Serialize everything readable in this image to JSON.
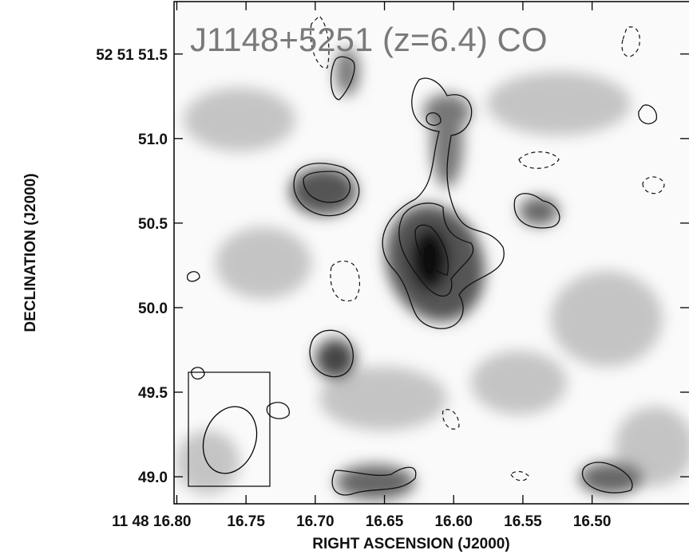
{
  "chart_data": {
    "type": "contour",
    "title": "J1148+5251 (z=6.4) CO",
    "x_label": "RIGHT ASCENSION (J2000)",
    "y_label": "DECLINATION (J2000)",
    "xlim": [
      16.802,
      16.43
    ],
    "ylim": [
      48.84,
      51.81
    ],
    "xticks": [
      {
        "value": 16.8,
        "label": "11 48 16.80"
      },
      16.75,
      {
        "value": 16.7,
        "label": "16.70"
      },
      16.65,
      {
        "value": 16.6,
        "label": "16.60"
      },
      16.55,
      {
        "value": 16.5,
        "label": "16.50"
      }
    ],
    "yticks": [
      {
        "value": 51.5,
        "label": "52 51 51.5"
      },
      {
        "value": 51,
        "label": "51.0"
      },
      50.5,
      {
        "value": 50,
        "label": "50.0"
      },
      49.5,
      {
        "value": 49,
        "label": "49.0"
      }
    ]
  }
}
